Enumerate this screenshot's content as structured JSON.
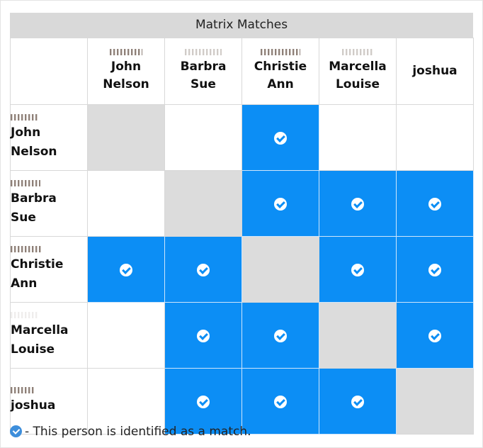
{
  "title": "Matrix Matches",
  "columns": [
    {
      "line1": "John",
      "line2": "Nelson"
    },
    {
      "line1": "Barbra",
      "line2": "Sue"
    },
    {
      "line1": "Christie",
      "line2": "Ann"
    },
    {
      "line1": "Marcella",
      "line2": "Louise"
    },
    {
      "line1": "joshua",
      "line2": ""
    }
  ],
  "rows": [
    {
      "line1": "John",
      "line2": "Nelson",
      "cells": [
        "self",
        "none",
        "match",
        "none",
        "none"
      ]
    },
    {
      "line1": "Barbra",
      "line2": "Sue",
      "cells": [
        "none",
        "self",
        "match",
        "match",
        "match"
      ]
    },
    {
      "line1": "Christie",
      "line2": "Ann",
      "cells": [
        "match",
        "match",
        "self",
        "match",
        "match"
      ]
    },
    {
      "line1": "Marcella",
      "line2": "Louise",
      "cells": [
        "none",
        "match",
        "match",
        "self",
        "match"
      ]
    },
    {
      "line1": "joshua",
      "line2": "",
      "cells": [
        "none",
        "match",
        "match",
        "match",
        "self"
      ]
    }
  ],
  "legend": {
    "icon": "check-circle-icon",
    "text": "- This person is identified as a match."
  },
  "colors": {
    "match": "#0c8ef5",
    "self": "#dcdcdc",
    "title_bar": "#d9d9d9"
  }
}
